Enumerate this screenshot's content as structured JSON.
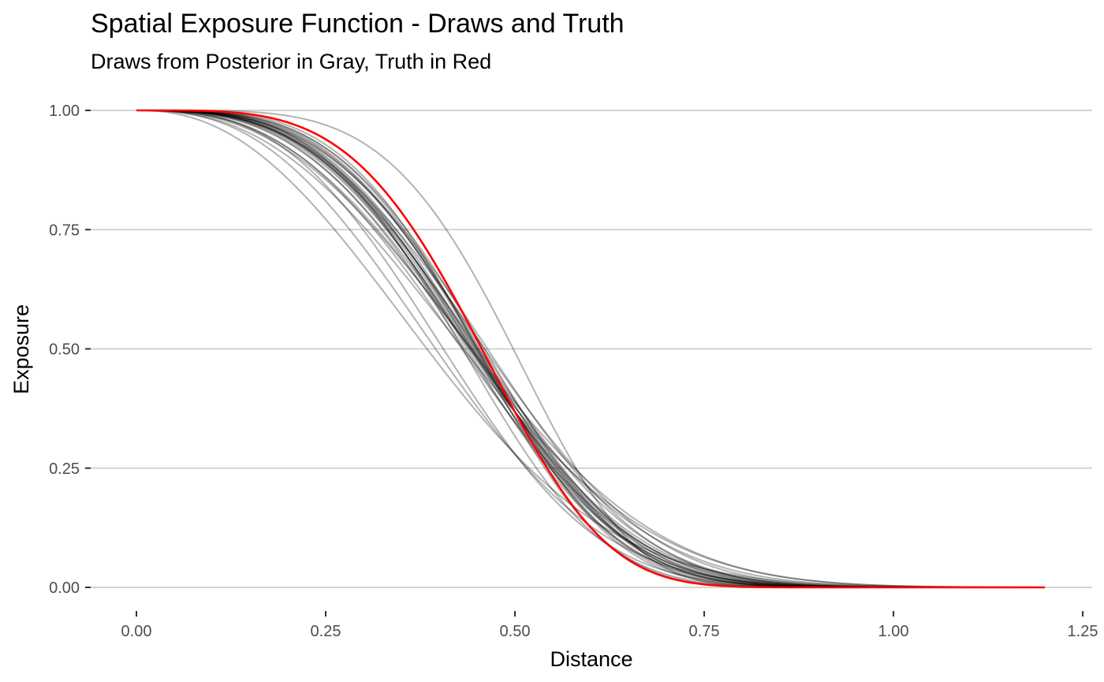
{
  "chart_data": {
    "type": "line",
    "title": "Spatial Exposure Function - Draws and Truth",
    "subtitle": "Draws from Posterior in Gray, Truth in Red",
    "xlabel": "Distance",
    "ylabel": "Exposure",
    "xlim": [
      -0.06,
      1.26
    ],
    "ylim": [
      -0.05,
      1.05
    ],
    "x_ticks": [
      "0.00",
      "0.25",
      "0.50",
      "0.75",
      "1.00",
      "1.25"
    ],
    "y_ticks": [
      "0.00",
      "0.25",
      "0.50",
      "0.75",
      "1.00"
    ],
    "x_tick_values": [
      0,
      0.25,
      0.5,
      0.75,
      1.0,
      1.25
    ],
    "y_tick_values": [
      0,
      0.25,
      0.5,
      0.75,
      1.0
    ],
    "grid": "horizontal major",
    "x_range": [
      0,
      1.2
    ],
    "function": "exp(-(distance/scale)^shape)",
    "truth": {
      "scale": 0.5,
      "shape": 4.0,
      "color": "#ff0000"
    },
    "draws_color": "rgba(0,0,0,0.3)",
    "draws": [
      {
        "scale": 0.5,
        "shape": 3.2
      },
      {
        "scale": 0.49,
        "shape": 3.0
      },
      {
        "scale": 0.51,
        "shape": 3.3
      },
      {
        "scale": 0.5,
        "shape": 3.5
      },
      {
        "scale": 0.495,
        "shape": 3.1
      },
      {
        "scale": 0.505,
        "shape": 3.4
      },
      {
        "scale": 0.5,
        "shape": 2.9
      },
      {
        "scale": 0.49,
        "shape": 3.2
      },
      {
        "scale": 0.51,
        "shape": 3.0
      },
      {
        "scale": 0.5,
        "shape": 3.6
      },
      {
        "scale": 0.495,
        "shape": 3.3
      },
      {
        "scale": 0.505,
        "shape": 3.1
      },
      {
        "scale": 0.5,
        "shape": 3.0
      },
      {
        "scale": 0.48,
        "shape": 3.4
      },
      {
        "scale": 0.52,
        "shape": 3.2
      },
      {
        "scale": 0.5,
        "shape": 3.3
      },
      {
        "scale": 0.49,
        "shape": 2.8
      },
      {
        "scale": 0.51,
        "shape": 3.5
      },
      {
        "scale": 0.5,
        "shape": 3.1
      },
      {
        "scale": 0.5,
        "shape": 2.5
      },
      {
        "scale": 0.505,
        "shape": 2.7
      },
      {
        "scale": 0.495,
        "shape": 3.8
      },
      {
        "scale": 0.51,
        "shape": 2.6
      },
      {
        "scale": 0.52,
        "shape": 3.0
      },
      {
        "scale": 0.455,
        "shape": 2.6
      },
      {
        "scale": 0.46,
        "shape": 2.9
      },
      {
        "scale": 0.45,
        "shape": 2.3
      },
      {
        "scale": 0.54,
        "shape": 4.5
      }
    ]
  }
}
